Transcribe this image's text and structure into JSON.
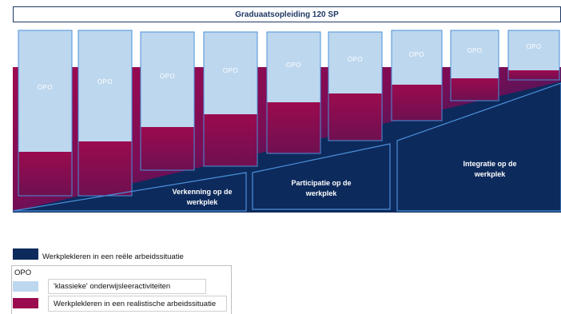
{
  "title": "Graduaatsopleiding 120 SP",
  "opo_label": "OPO",
  "columns": [
    {
      "opo": "OPO"
    },
    {
      "opo": "OPO"
    },
    {
      "opo": "OPO"
    },
    {
      "opo": "OPO"
    },
    {
      "opo": "OPO"
    },
    {
      "opo": "OPO"
    },
    {
      "opo": "OPO"
    },
    {
      "opo": "OPO"
    },
    {
      "opo": "OPO"
    }
  ],
  "phases": [
    {
      "label_line1": "Verkenning op de",
      "label_line2": "werkplek"
    },
    {
      "label_line1": "Participatie op de",
      "label_line2": "werkplek"
    },
    {
      "label_line1": "Integratie op de",
      "label_line2": "werkplek"
    }
  ],
  "legend": {
    "real": "Werkplekleren in een reële arbeidssituatie",
    "header": "OPO",
    "classic": "'klassieke' onderwijsleeractiviteiten",
    "realistic": "Werkplekleren in een realistische arbeidssituatie"
  },
  "colors": {
    "navy": "#0d2a5c",
    "magenta": "#9b0a4f",
    "light_blue": "#bdd7ee",
    "border_blue": "#4a90d9"
  }
}
